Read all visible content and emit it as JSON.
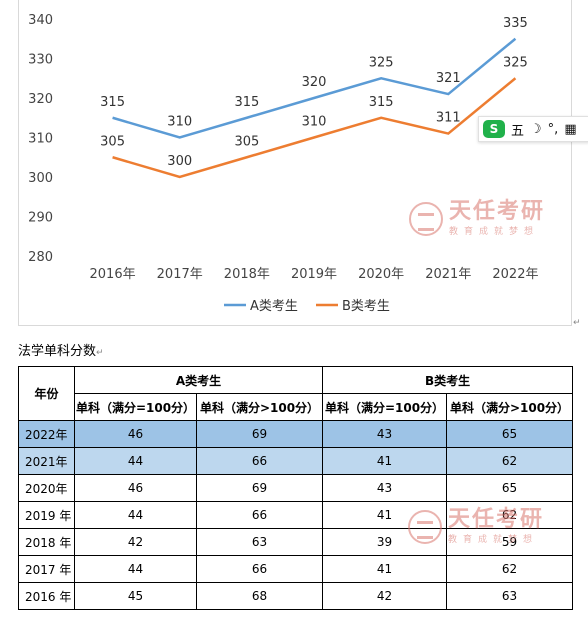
{
  "chart_data": {
    "type": "line",
    "categories": [
      "2016年",
      "2017年",
      "2018年",
      "2019年",
      "2020年",
      "2021年",
      "2022年"
    ],
    "series": [
      {
        "name": "A类考生",
        "color": "#5b9bd5",
        "values": [
          315,
          310,
          315,
          320,
          325,
          321,
          335
        ]
      },
      {
        "name": "B类考生",
        "color": "#ed7d31",
        "values": [
          305,
          300,
          305,
          310,
          315,
          311,
          325
        ]
      }
    ],
    "ylim": [
      280,
      340
    ],
    "yticks": [
      280,
      290,
      300,
      310,
      320,
      330,
      340
    ],
    "grid": false,
    "legend_position": "bottom"
  },
  "watermark": {
    "title": "天任考研",
    "subtitle": "教育成就梦想"
  },
  "ime": {
    "label1": "五",
    "label2": "☽",
    "label3": "°,",
    "label4": "▦"
  },
  "section_title": "法学单科分数",
  "table": {
    "year_header": "年份",
    "group_a": "A类考生",
    "group_b": "B类考生",
    "col1": "单科（满分=100分）",
    "col2": "单科（满分>100分）",
    "rows": [
      {
        "year": "2022年",
        "a1": "46",
        "a2": "69",
        "b1": "43",
        "b2": "65"
      },
      {
        "year": "2021年",
        "a1": "44",
        "a2": "66",
        "b1": "41",
        "b2": "62"
      },
      {
        "year": "2020年",
        "a1": "46",
        "a2": "69",
        "b1": "43",
        "b2": "65"
      },
      {
        "year": "2019 年",
        "a1": "44",
        "a2": "66",
        "b1": "41",
        "b2": "62"
      },
      {
        "year": "2018 年",
        "a1": "42",
        "a2": "63",
        "b1": "39",
        "b2": "59"
      },
      {
        "year": "2017 年",
        "a1": "44",
        "a2": "66",
        "b1": "41",
        "b2": "62"
      },
      {
        "year": "2016 年",
        "a1": "45",
        "a2": "68",
        "b1": "42",
        "b2": "63"
      }
    ]
  }
}
